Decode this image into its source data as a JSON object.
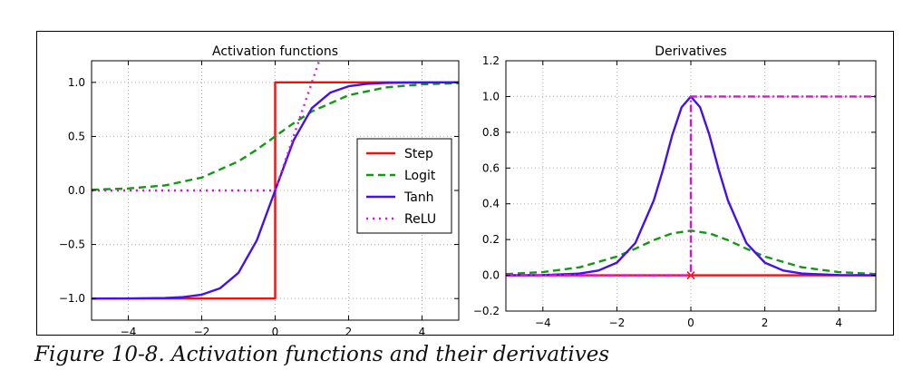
{
  "caption": "Figure 10-8. Activation functions and their derivatives",
  "colors": {
    "step": "#ee1111",
    "logit": "#119911",
    "tanh": "#4411ee",
    "relu": "#dd11dd",
    "grid": "#b0b0b0"
  },
  "chart_data": [
    {
      "type": "line",
      "title": "Activation functions",
      "xlabel": "",
      "ylabel": "",
      "xlim": [
        -5,
        5
      ],
      "ylim": [
        -1.2,
        1.2
      ],
      "xticks": [
        -4,
        -2,
        0,
        2,
        4
      ],
      "xtick_labels": [
        "−4",
        "−2",
        "0",
        "2",
        "4"
      ],
      "yticks": [
        -1.0,
        -0.5,
        0.0,
        0.5,
        1.0
      ],
      "ytick_labels": [
        "−1.0",
        "−0.5",
        "0.0",
        "0.5",
        "1.0"
      ],
      "grid": true,
      "legend": "center-right",
      "series": [
        {
          "name": "Step",
          "style": "solid",
          "color": "#ee1111",
          "x": [
            -5,
            0,
            0,
            5
          ],
          "y": [
            -1,
            -1,
            1,
            1
          ]
        },
        {
          "name": "Logit",
          "style": "dashed",
          "color": "#119911",
          "x": [
            -5,
            -4,
            -3,
            -2,
            -1,
            -0.5,
            0,
            0.5,
            1,
            2,
            3,
            4,
            5
          ],
          "y": [
            0.007,
            0.018,
            0.047,
            0.119,
            0.269,
            0.378,
            0.5,
            0.622,
            0.731,
            0.881,
            0.953,
            0.982,
            0.993
          ]
        },
        {
          "name": "Tanh",
          "style": "solid",
          "color": "#4411ee",
          "x": [
            -5,
            -4,
            -3,
            -2.5,
            -2,
            -1.5,
            -1,
            -0.5,
            0,
            0.5,
            1,
            1.5,
            2,
            2.5,
            3,
            4,
            5
          ],
          "y": [
            -1.0,
            -0.999,
            -0.995,
            -0.987,
            -0.964,
            -0.905,
            -0.762,
            -0.462,
            0,
            0.462,
            0.762,
            0.905,
            0.964,
            0.987,
            0.995,
            0.999,
            1.0
          ]
        },
        {
          "name": "ReLU",
          "style": "dotted",
          "color": "#dd11dd",
          "x": [
            -5,
            0,
            1.2
          ],
          "y": [
            0,
            0,
            1.2
          ]
        }
      ]
    },
    {
      "type": "line",
      "title": "Derivatives",
      "xlabel": "",
      "ylabel": "",
      "xlim": [
        -5,
        5
      ],
      "ylim": [
        -0.2,
        1.2
      ],
      "xticks": [
        -4,
        -2,
        0,
        2,
        4
      ],
      "xtick_labels": [
        "−4",
        "−2",
        "0",
        "2",
        "4"
      ],
      "yticks": [
        -0.2,
        0.0,
        0.2,
        0.4,
        0.6,
        0.8,
        1.0,
        1.2
      ],
      "ytick_labels": [
        "−0.2",
        "0.0",
        "0.2",
        "0.4",
        "0.6",
        "0.8",
        "1.0",
        "1.2"
      ],
      "grid": true,
      "series": [
        {
          "name": "Step",
          "style": "solid",
          "color": "#ee1111",
          "x": [
            -5,
            5
          ],
          "y": [
            0,
            0
          ],
          "marker_x": 0,
          "marker_y": 0
        },
        {
          "name": "Logit",
          "style": "dashed",
          "color": "#119911",
          "x": [
            -5,
            -4,
            -3,
            -2,
            -1.5,
            -1,
            -0.5,
            0,
            0.5,
            1,
            1.5,
            2,
            3,
            4,
            5
          ],
          "y": [
            0.007,
            0.018,
            0.045,
            0.105,
            0.149,
            0.197,
            0.235,
            0.25,
            0.235,
            0.197,
            0.149,
            0.105,
            0.045,
            0.018,
            0.007
          ]
        },
        {
          "name": "Tanh",
          "style": "solid",
          "color": "#4411ee",
          "x": [
            -5,
            -4,
            -3,
            -2.5,
            -2,
            -1.5,
            -1,
            -0.75,
            -0.5,
            -0.25,
            0,
            0.25,
            0.5,
            0.75,
            1,
            1.5,
            2,
            2.5,
            3,
            4,
            5
          ],
          "y": [
            0.0002,
            0.0013,
            0.0099,
            0.0266,
            0.0707,
            0.181,
            0.42,
            0.593,
            0.786,
            0.94,
            1.0,
            0.94,
            0.786,
            0.593,
            0.42,
            0.181,
            0.0707,
            0.0266,
            0.0099,
            0.0013,
            0.0002
          ]
        },
        {
          "name": "ReLU",
          "style": "dashdot",
          "color": "#dd11dd",
          "x": [
            -5,
            0,
            0,
            5
          ],
          "y": [
            0,
            0,
            1,
            1
          ]
        }
      ]
    }
  ]
}
